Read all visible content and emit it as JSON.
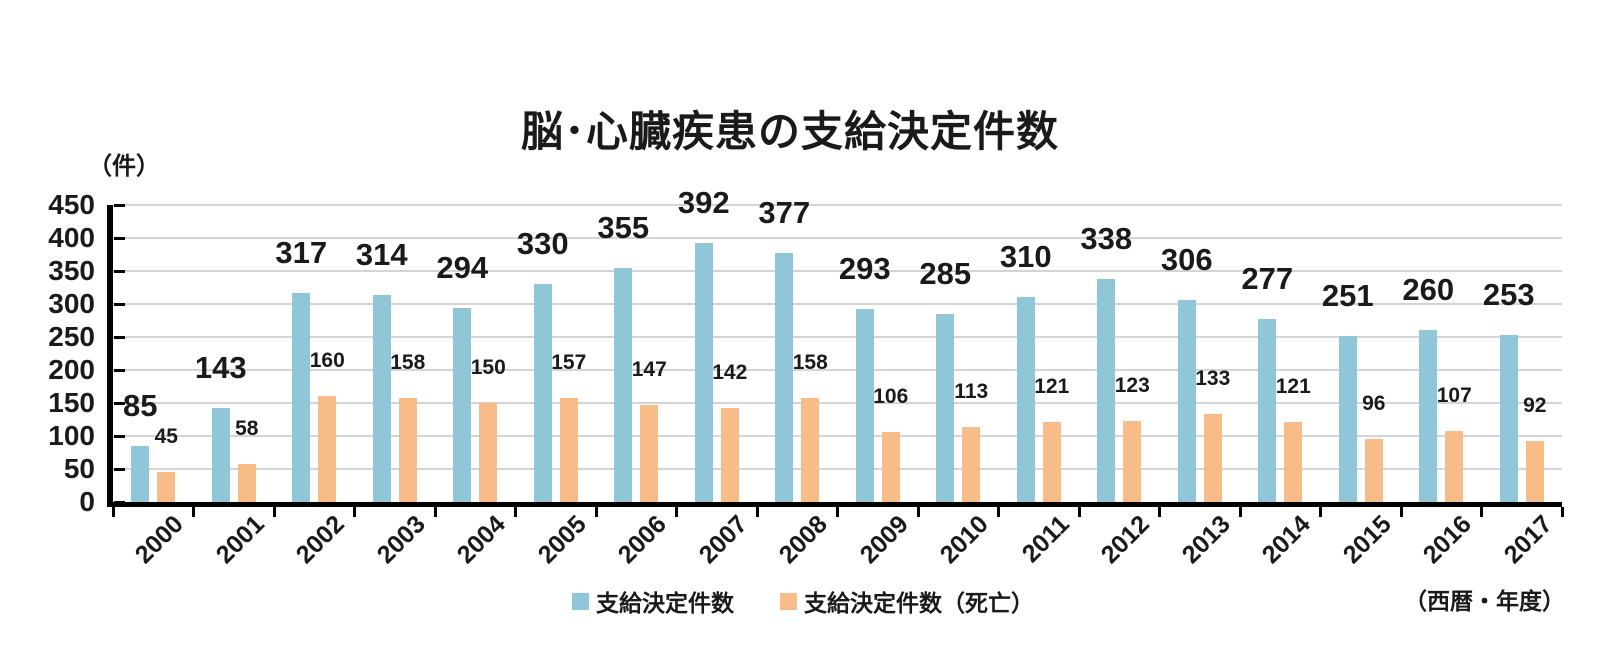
{
  "chart_data": {
    "type": "bar",
    "title": "脳･心臓疾患の支給決定件数",
    "unit_label": "（件）",
    "xaxis_note": "（西暦・年度）",
    "categories": [
      "2000",
      "2001",
      "2002",
      "2003",
      "2004",
      "2005",
      "2006",
      "2007",
      "2008",
      "2009",
      "2010",
      "2011",
      "2012",
      "2013",
      "2014",
      "2015",
      "2016",
      "2017"
    ],
    "series": [
      {
        "name": "支給決定件数",
        "color": "#8FC6D8",
        "values": [
          85,
          143,
          317,
          314,
          294,
          330,
          355,
          392,
          377,
          293,
          285,
          310,
          338,
          306,
          277,
          251,
          260,
          253
        ]
      },
      {
        "name": "支給決定件数（死亡）",
        "color": "#F7BC88",
        "values": [
          45,
          58,
          160,
          158,
          150,
          157,
          147,
          142,
          158,
          106,
          113,
          121,
          123,
          133,
          121,
          96,
          107,
          92
        ]
      }
    ],
    "ylim": [
      0,
      450
    ],
    "ytick_step": 50,
    "grid": true,
    "value_labels": true,
    "legend_position": "bottom",
    "colors": {
      "grid": "#D4D4D4",
      "axis": "#000000",
      "text": "#1C1C1C"
    }
  }
}
